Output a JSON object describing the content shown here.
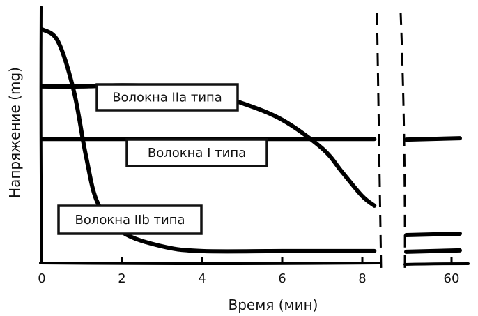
{
  "chart_data": {
    "type": "line",
    "title": "",
    "xlabel": "Время (мин)",
    "ylabel": "Напряжение (mg)",
    "x_ticks": [
      "0",
      "2",
      "4",
      "6",
      "8",
      "60"
    ],
    "x_axis_break": "between 8 and 60",
    "ylim": [
      0,
      1
    ],
    "grid": false,
    "series": [
      {
        "name": "Волокна IIa типа",
        "x": [
          0,
          1,
          2,
          3,
          4,
          5,
          6,
          7,
          7.5,
          8,
          8.3,
          60
        ],
        "values": [
          0.74,
          0.74,
          0.745,
          0.74,
          0.72,
          0.67,
          0.6,
          0.48,
          0.38,
          0.28,
          0.24,
          0.12
        ]
      },
      {
        "name": "Волокна I типа",
        "x": [
          0,
          2,
          4,
          6,
          8,
          8.3,
          60
        ],
        "values": [
          0.52,
          0.52,
          0.52,
          0.52,
          0.52,
          0.52,
          0.52
        ]
      },
      {
        "name": "Волокна IIb типа",
        "x": [
          0,
          0.4,
          0.8,
          1.1,
          1.4,
          2,
          3,
          4,
          6,
          8,
          8.3,
          60
        ],
        "values": [
          0.98,
          0.93,
          0.72,
          0.45,
          0.25,
          0.13,
          0.07,
          0.05,
          0.05,
          0.05,
          0.05,
          0.05
        ]
      }
    ]
  }
}
